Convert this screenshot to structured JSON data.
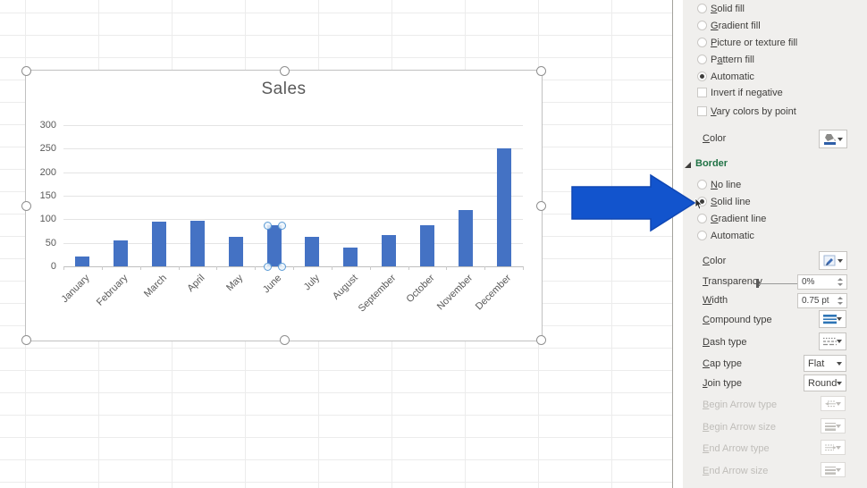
{
  "chart_data": {
    "type": "bar",
    "title": "Sales",
    "categories": [
      "January",
      "February",
      "March",
      "April",
      "May",
      "June",
      "July",
      "August",
      "September",
      "October",
      "November",
      "December"
    ],
    "values": [
      20,
      55,
      95,
      97,
      62,
      88,
      62,
      40,
      67,
      88,
      120,
      250
    ],
    "xlabel": "",
    "ylabel": "",
    "ylim": [
      0,
      300
    ],
    "ytick_step": 50,
    "grid": true,
    "legend": "none",
    "bar_color": "#4472c4",
    "selected_category": "June"
  },
  "annotation_arrow": {
    "direction": "right",
    "color": "#1254cd",
    "edge_color": "#0f47b4",
    "points_at": "Solid line"
  },
  "format_pane": {
    "fill": {
      "options": [
        {
          "label": "Solid fill",
          "accel_index": 0,
          "control": "radio",
          "selected": false
        },
        {
          "label": "Gradient fill",
          "accel_index": 0,
          "control": "radio",
          "selected": false
        },
        {
          "label": "Picture or texture fill",
          "accel_index": 0,
          "control": "radio",
          "selected": false
        },
        {
          "label": "Pattern fill",
          "accel_index": 1,
          "control": "radio",
          "selected": false
        },
        {
          "label": "Automatic",
          "accel_index": -1,
          "control": "radio",
          "selected": true
        },
        {
          "label": "Invert if negative",
          "accel_index": -1,
          "control": "checkbox",
          "selected": false
        },
        {
          "label": "Vary colors by point",
          "accel_index": 0,
          "control": "checkbox",
          "selected": false
        }
      ],
      "color_label": {
        "label": "Color",
        "accel_index": 0
      }
    },
    "border": {
      "header": "Border",
      "options": [
        {
          "label": "No line",
          "accel_index": 0,
          "control": "radio",
          "selected": false
        },
        {
          "label": "Solid line",
          "accel_index": 0,
          "control": "radio",
          "selected": true
        },
        {
          "label": "Gradient line",
          "accel_index": 0,
          "control": "radio",
          "selected": false
        },
        {
          "label": "Automatic",
          "accel_index": -1,
          "control": "radio",
          "selected": false
        }
      ],
      "color_label": {
        "label": "Color",
        "accel_index": 0
      },
      "transparency": {
        "label": "Transparency",
        "accel_index": 0,
        "value": "0%"
      },
      "width": {
        "label": "Width",
        "accel_index": 0,
        "value": "0.75 pt"
      },
      "compound_type": {
        "label": "Compound type",
        "accel_index": 0
      },
      "dash_type": {
        "label": "Dash type",
        "accel_index": 0
      },
      "cap_type": {
        "label": "Cap type",
        "accel_index": 0,
        "value": "Flat"
      },
      "join_type": {
        "label": "Join type",
        "accel_index": 0,
        "value": "Round"
      },
      "begin_arrow_type": {
        "label": "Begin Arrow type",
        "accel_index": 0,
        "disabled": true
      },
      "begin_arrow_size": {
        "label": "Begin Arrow size",
        "accel_index": 0,
        "disabled": true
      },
      "end_arrow_type": {
        "label": "End Arrow type",
        "accel_index": 0,
        "disabled": true
      },
      "end_arrow_size": {
        "label": "End Arrow size",
        "accel_index": 0,
        "disabled": true
      }
    }
  }
}
